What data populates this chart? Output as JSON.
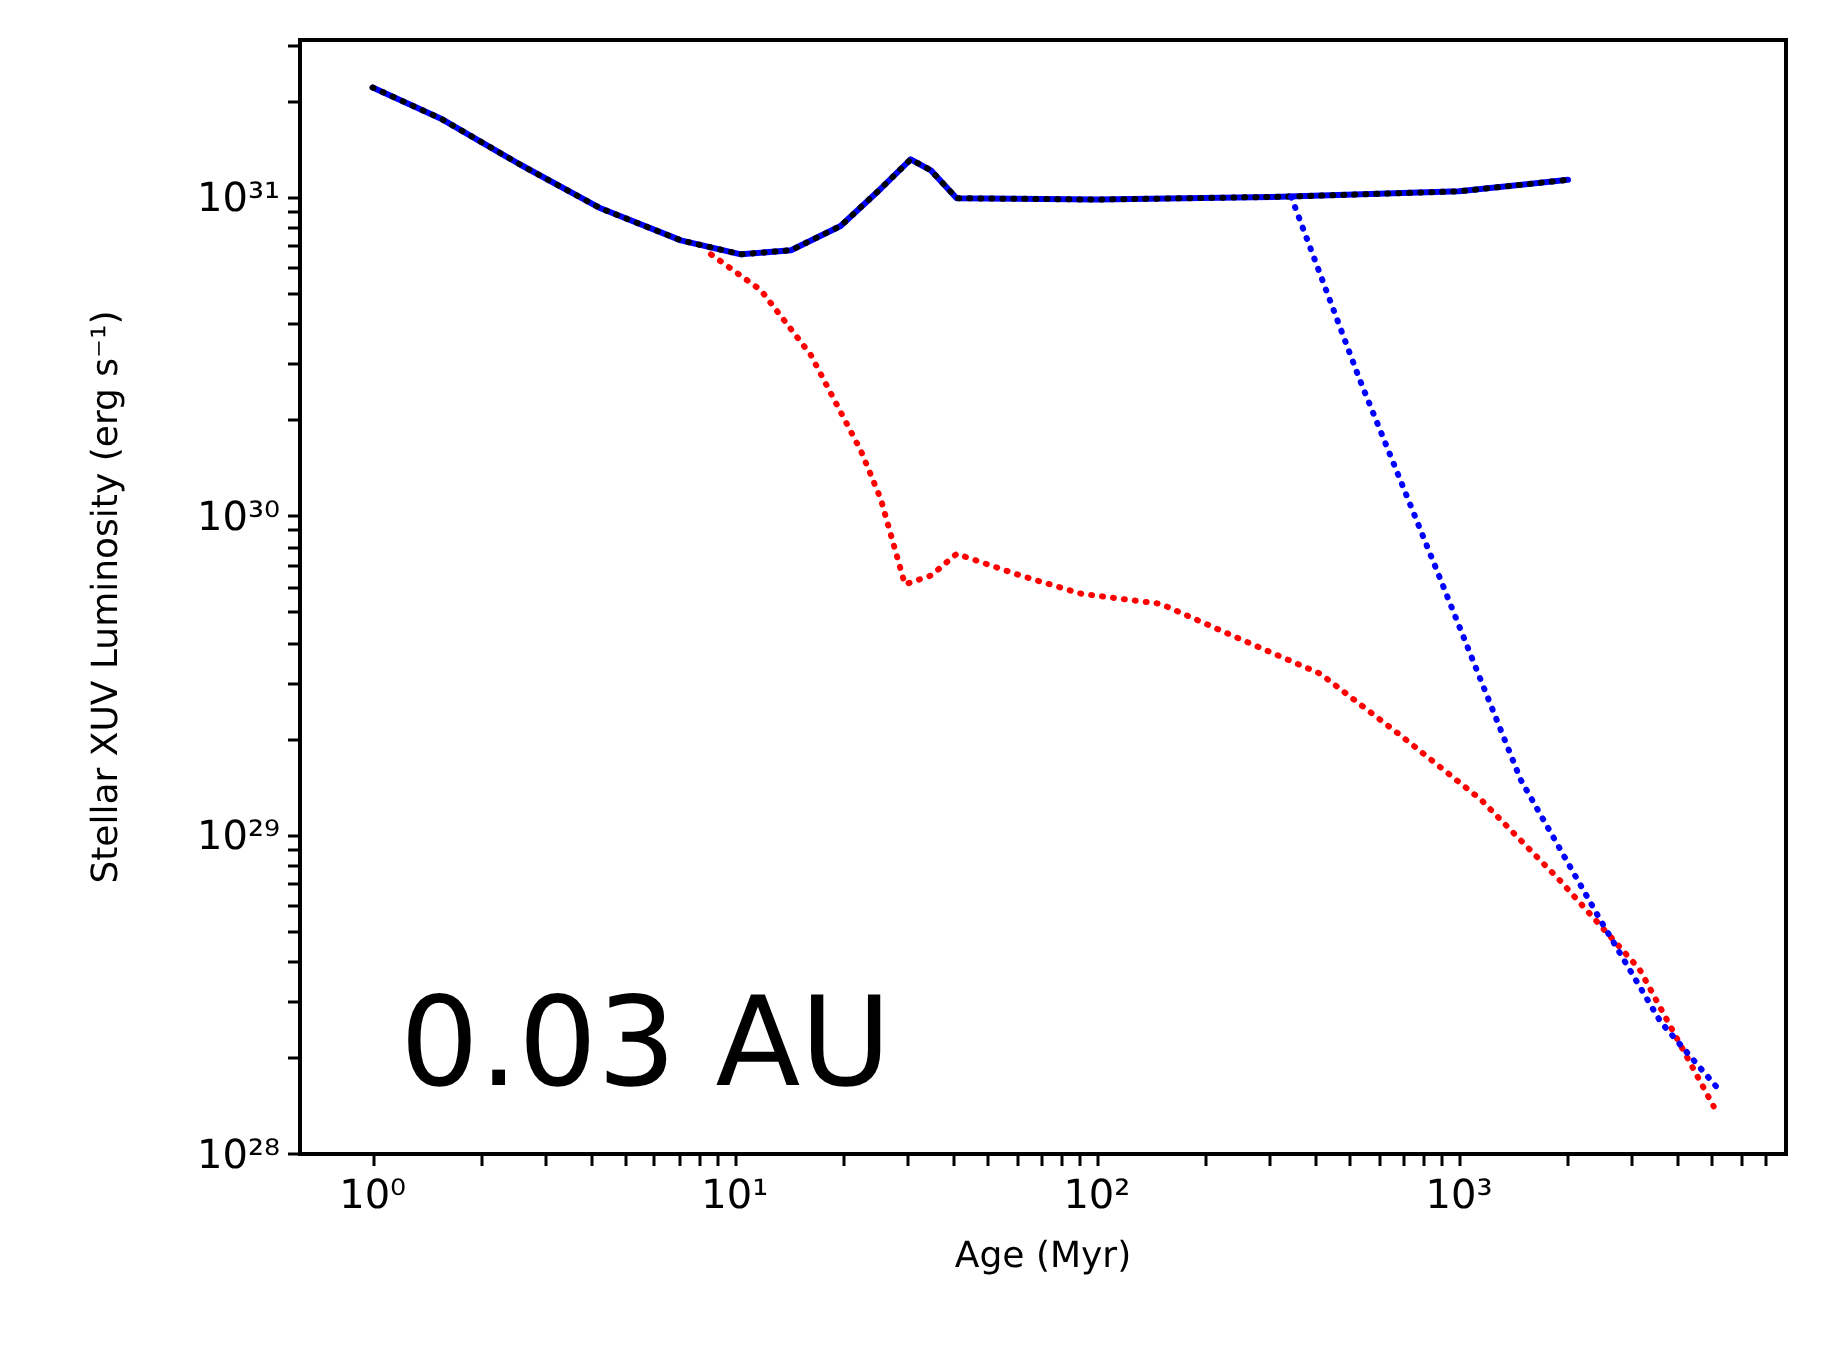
{
  "chart_data": {
    "type": "line",
    "xlabel": "Age (Myr)",
    "ylabel": "Stellar XUV Luminosity (erg s⁻¹)",
    "log": "xy",
    "grid": false,
    "marker": "none",
    "xlim": [
      0.63,
      8000
    ],
    "ylim": [
      1e+28,
      3.1e+31
    ],
    "xticks": [
      {
        "value": 1,
        "label": "10⁰"
      },
      {
        "value": 2,
        "label": null
      },
      {
        "value": 3,
        "label": null
      },
      {
        "value": 4,
        "label": null
      },
      {
        "value": 5,
        "label": null
      },
      {
        "value": 6,
        "label": null
      },
      {
        "value": 7,
        "label": null
      },
      {
        "value": 8,
        "label": null
      },
      {
        "value": 9,
        "label": null
      },
      {
        "value": 10,
        "label": "10¹"
      },
      {
        "value": 20,
        "label": null
      },
      {
        "value": 30,
        "label": null
      },
      {
        "value": 40,
        "label": null
      },
      {
        "value": 50,
        "label": null
      },
      {
        "value": 60,
        "label": null
      },
      {
        "value": 70,
        "label": null
      },
      {
        "value": 80,
        "label": null
      },
      {
        "value": 90,
        "label": null
      },
      {
        "value": 100,
        "label": "10²"
      },
      {
        "value": 200,
        "label": null
      },
      {
        "value": 300,
        "label": null
      },
      {
        "value": 400,
        "label": null
      },
      {
        "value": 500,
        "label": null
      },
      {
        "value": 600,
        "label": null
      },
      {
        "value": 700,
        "label": null
      },
      {
        "value": 800,
        "label": null
      },
      {
        "value": 900,
        "label": null
      },
      {
        "value": 1000,
        "label": "10³"
      },
      {
        "value": 2000,
        "label": null
      },
      {
        "value": 3000,
        "label": null
      },
      {
        "value": 4000,
        "label": null
      },
      {
        "value": 5000,
        "label": null
      },
      {
        "value": 6000,
        "label": null
      },
      {
        "value": 7000,
        "label": null
      }
    ],
    "yticks": [
      {
        "value": 1e+28,
        "label": "10²⁸"
      },
      {
        "value": 2e+28,
        "label": null
      },
      {
        "value": 3e+28,
        "label": null
      },
      {
        "value": 4e+28,
        "label": null
      },
      {
        "value": 5e+28,
        "label": null
      },
      {
        "value": 6e+28,
        "label": null
      },
      {
        "value": 7e+28,
        "label": null
      },
      {
        "value": 8e+28,
        "label": null
      },
      {
        "value": 9e+28,
        "label": null
      },
      {
        "value": 1e+29,
        "label": "10²⁹"
      },
      {
        "value": 2e+29,
        "label": null
      },
      {
        "value": 3e+29,
        "label": null
      },
      {
        "value": 4e+29,
        "label": null
      },
      {
        "value": 5e+29,
        "label": null
      },
      {
        "value": 6e+29,
        "label": null
      },
      {
        "value": 7e+29,
        "label": null
      },
      {
        "value": 8e+29,
        "label": null
      },
      {
        "value": 9e+29,
        "label": null
      },
      {
        "value": 1e+30,
        "label": "10³⁰"
      },
      {
        "value": 2e+30,
        "label": null
      },
      {
        "value": 3e+30,
        "label": null
      },
      {
        "value": 4e+30,
        "label": null
      },
      {
        "value": 5e+30,
        "label": null
      },
      {
        "value": 6e+30,
        "label": null
      },
      {
        "value": 7e+30,
        "label": null
      },
      {
        "value": 8e+30,
        "label": null
      },
      {
        "value": 9e+30,
        "label": null
      },
      {
        "value": 1e+31,
        "label": "10³¹"
      },
      {
        "value": 2e+31,
        "label": null
      },
      {
        "value": 3e+31,
        "label": null
      }
    ],
    "annotations": [
      "0.03 AU"
    ],
    "series": [
      {
        "color": "#0000ff",
        "line_style": "solid",
        "x": [
          1,
          1.54,
          2.56,
          4.26,
          7.1,
          10.4,
          14.3,
          19.6,
          25.3,
          30.6,
          34.8,
          41,
          100,
          322,
          1000,
          2000
        ],
        "values": [
          2.2e+31,
          1.76e+31,
          1.26e+31,
          9.2e+30,
          7.3e+30,
          6.6e+30,
          6.8e+30,
          8.1e+30,
          1.06e+31,
          1.31e+31,
          1.21e+31,
          9.9e+30,
          9.8e+30,
          1e+31,
          1.04e+31,
          1.13e+31
        ]
      },
      {
        "color": "#000000",
        "line_style": "dotted",
        "x": [
          1,
          1.54,
          2.56,
          4.26,
          7.1,
          10.4,
          14.3,
          19.6,
          25.3,
          30.6,
          34.8,
          41,
          100,
          322,
          1000,
          2000
        ],
        "values": [
          2.2e+31,
          1.76e+31,
          1.26e+31,
          9.2e+30,
          7.3e+30,
          6.6e+30,
          6.8e+30,
          8.1e+30,
          1.06e+31,
          1.31e+31,
          1.21e+31,
          9.9e+30,
          9.8e+30,
          1e+31,
          1.04e+31,
          1.13e+31
        ]
      },
      {
        "color": "#ff0000",
        "line_style": "dotted",
        "x": [
          8.6,
          11.8,
          16.2,
          22.3,
          25.3,
          29.5,
          34.8,
          41,
          61.6,
          90.5,
          150,
          250,
          414,
          690,
          1150,
          1900,
          3150,
          5050
        ],
        "values": [
          6.6e+30,
          5.1e+30,
          3.2e+30,
          1.6e+30,
          1.13e+30,
          6.1e+29,
          6.5e+29,
          7.6e+29,
          6.5e+29,
          5.7e+29,
          5.3e+29,
          4.1e+29,
          3.2e+29,
          2.05e+29,
          1.29e+29,
          7.2e+28,
          3.8e+28,
          1.41e+28
        ]
      },
      {
        "color": "#0000ff",
        "line_style": "dotted",
        "x": [
          344,
          530,
          890,
          1480,
          2460,
          3600,
          5200
        ],
        "values": [
          1e+31,
          2.7e+30,
          6.3e+29,
          1.49e+29,
          5.4e+28,
          2.6e+28,
          1.6e+28
        ]
      }
    ]
  }
}
